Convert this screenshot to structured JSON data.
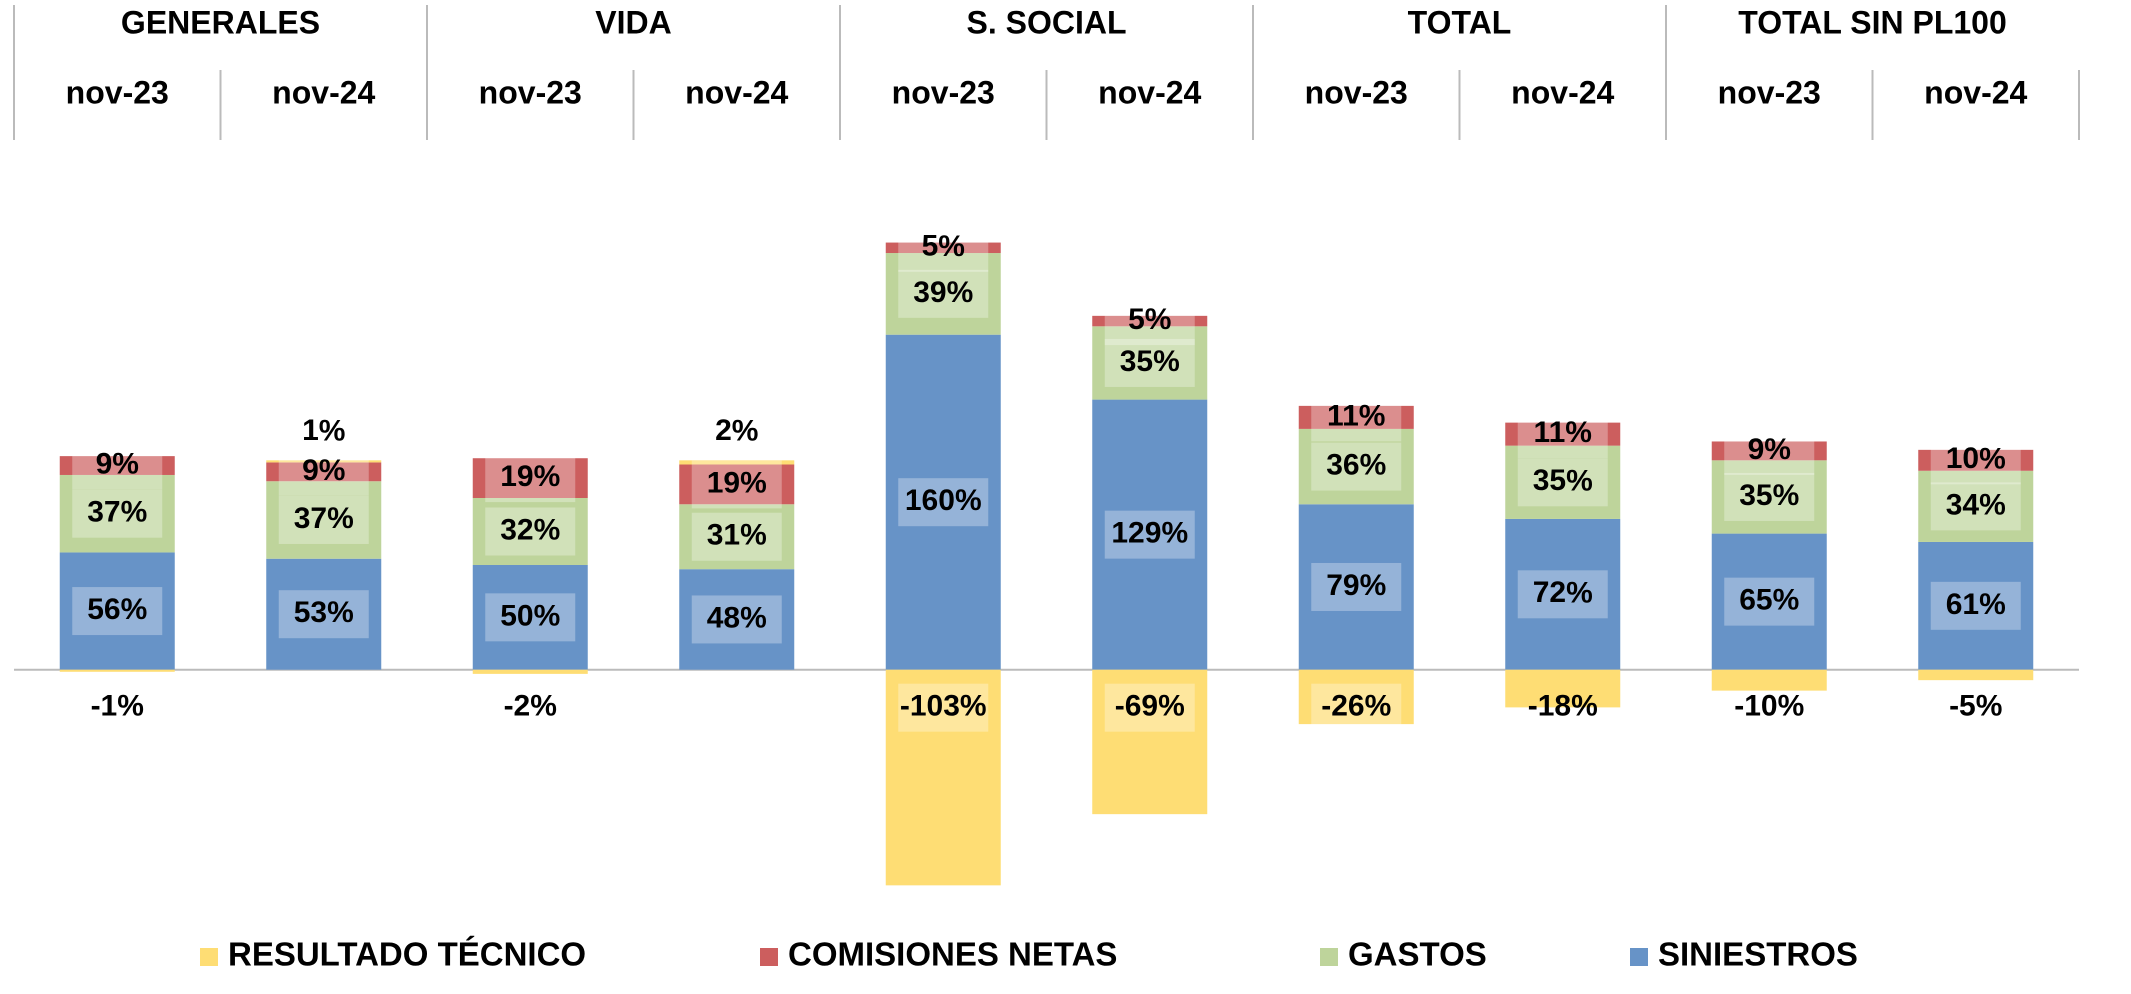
{
  "chart_data": {
    "type": "stacked_bar",
    "groups": [
      "GENERALES",
      "VIDA",
      "S. SOCIAL",
      "TOTAL",
      "TOTAL SIN PL100"
    ],
    "categories": [
      "nov-23",
      "nov-24",
      "nov-23",
      "nov-24",
      "nov-23",
      "nov-24",
      "nov-23",
      "nov-24",
      "nov-23",
      "nov-24"
    ],
    "series": [
      {
        "name": "RESULTADO TÉCNICO",
        "color": "#fedd74",
        "values": [
          -1,
          1,
          -2,
          2,
          -103,
          -69,
          -26,
          -18,
          -10,
          -5
        ]
      },
      {
        "name": "COMISIONES NETAS",
        "color": "#cc5e5e",
        "values": [
          9,
          9,
          19,
          19,
          5,
          5,
          11,
          11,
          9,
          10
        ]
      },
      {
        "name": "GASTOS",
        "color": "#bed49b",
        "values": [
          37,
          37,
          32,
          31,
          39,
          35,
          36,
          35,
          35,
          34
        ]
      },
      {
        "name": "SINIESTROS",
        "color": "#6793c7",
        "values": [
          56,
          53,
          50,
          48,
          160,
          129,
          79,
          72,
          65,
          61
        ]
      }
    ],
    "value_labels": {
      "suffix_unit": "%"
    },
    "ylim": [
      -110,
      210
    ]
  }
}
